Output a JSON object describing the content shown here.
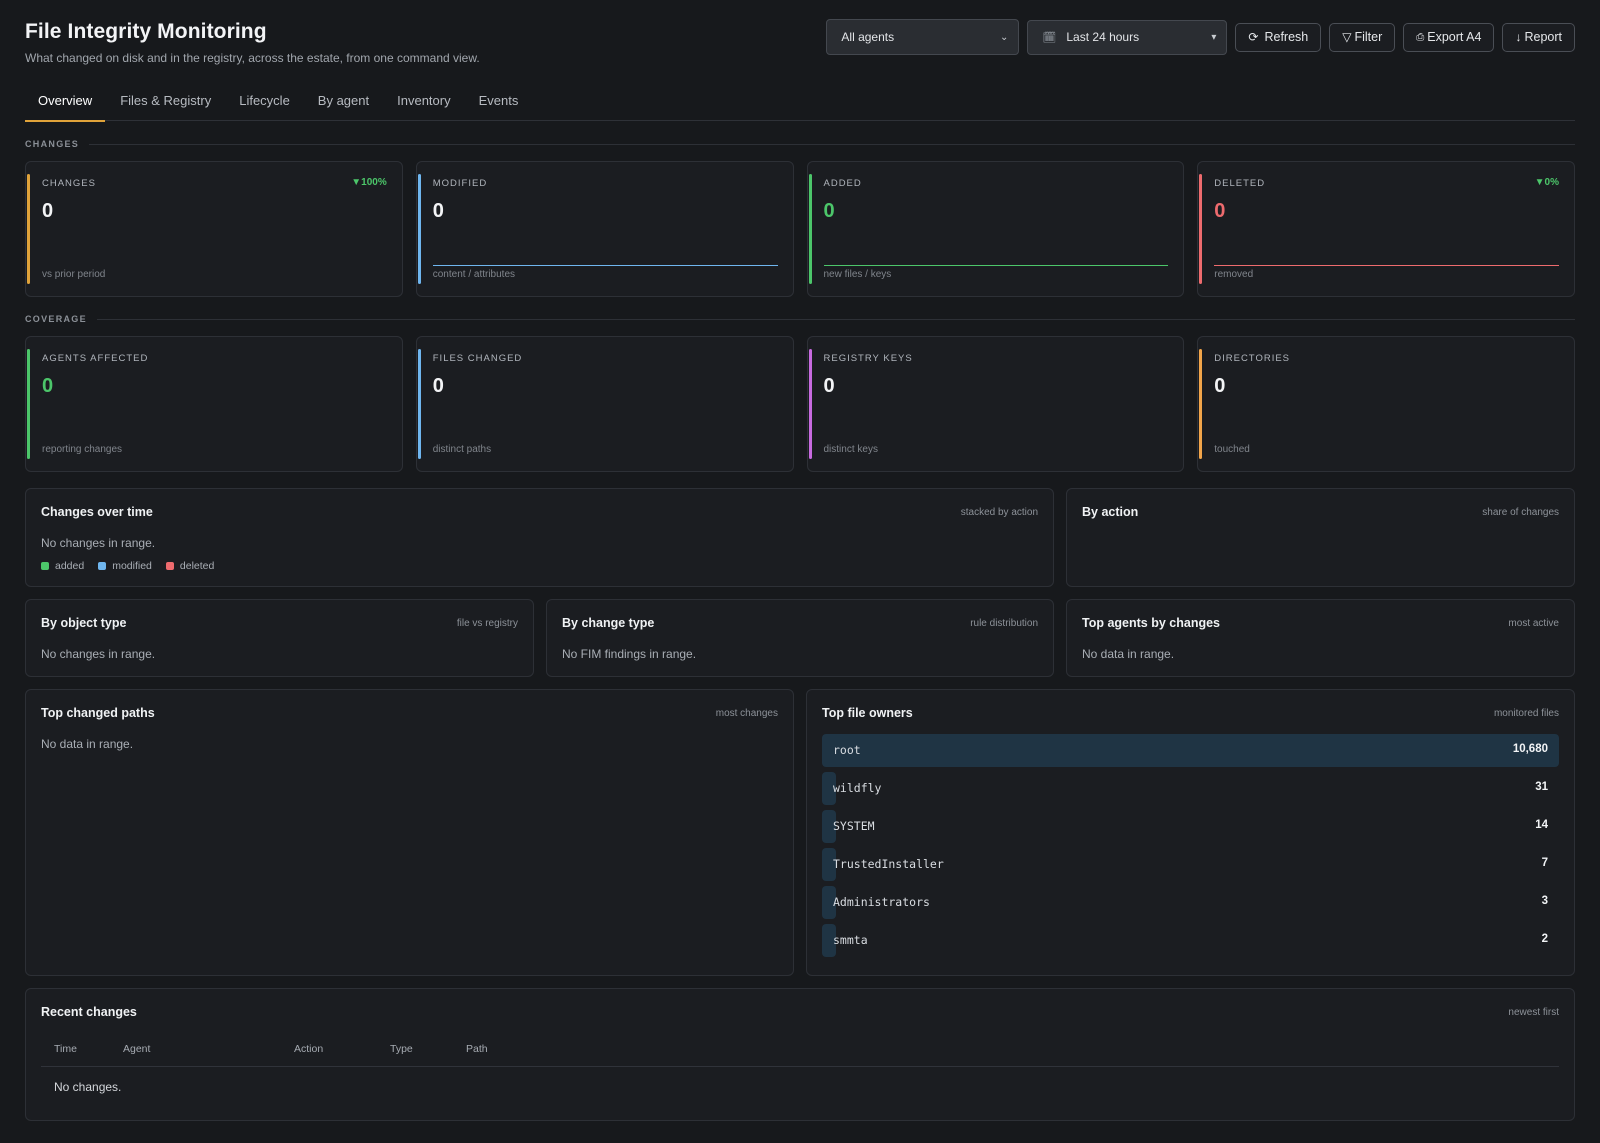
{
  "header": {
    "title": "File Integrity Monitoring",
    "subtitle": "What changed on disk and in the registry, across the estate, from one command view."
  },
  "controls": {
    "agents_select": "All agents",
    "range_select": "Last 24 hours",
    "refresh": "Refresh",
    "filter": "Filter",
    "export": "Export A4",
    "report": "Report"
  },
  "tabs": [
    "Overview",
    "Files & Registry",
    "Lifecycle",
    "By agent",
    "Inventory",
    "Events"
  ],
  "sections": {
    "changes": "CHANGES",
    "coverage": "COVERAGE"
  },
  "stats_changes": [
    {
      "label": "CHANGES",
      "value": "0",
      "foot": "vs prior period",
      "delta": "100%",
      "accent": "#e0a33a",
      "value_color": "#f3f4f6"
    },
    {
      "label": "MODIFIED",
      "value": "0",
      "foot": "content / attributes",
      "accent": "#6fb6ef",
      "value_color": "#f3f4f6",
      "spark_color": "#6fb6ef"
    },
    {
      "label": "ADDED",
      "value": "0",
      "foot": "new files / keys",
      "accent": "#4cc66a",
      "value_color": "#4cc66a",
      "spark_color": "#4cc66a"
    },
    {
      "label": "DELETED",
      "value": "0",
      "foot": "removed",
      "delta": "0%",
      "accent": "#ee6b6e",
      "value_color": "#ee6b6e",
      "spark_color": "#ee6b6e"
    }
  ],
  "stats_coverage": [
    {
      "label": "AGENTS AFFECTED",
      "value": "0",
      "foot": "reporting changes",
      "accent": "#4cc66a",
      "value_color": "#4cc66a"
    },
    {
      "label": "FILES CHANGED",
      "value": "0",
      "foot": "distinct paths",
      "accent": "#6fb6ef",
      "value_color": "#f3f4f6"
    },
    {
      "label": "REGISTRY KEYS",
      "value": "0",
      "foot": "distinct keys",
      "accent": "#c86ae0",
      "value_color": "#f3f4f6"
    },
    {
      "label": "DIRECTORIES",
      "value": "0",
      "foot": "touched",
      "accent": "#f2a54a",
      "value_color": "#f3f4f6"
    }
  ],
  "panels": {
    "changes_over_time": {
      "title": "Changes over time",
      "hint": "stacked by action",
      "empty": "No changes in range.",
      "legend": [
        {
          "label": "added",
          "color": "#4cc66a"
        },
        {
          "label": "modified",
          "color": "#6fb6ef"
        },
        {
          "label": "deleted",
          "color": "#ee6b6e"
        }
      ]
    },
    "by_action": {
      "title": "By action",
      "hint": "share of changes"
    },
    "by_object_type": {
      "title": "By object type",
      "hint": "file vs registry",
      "empty": "No changes in range."
    },
    "by_change_type": {
      "title": "By change type",
      "hint": "rule distribution",
      "empty": "No FIM findings in range."
    },
    "top_agents": {
      "title": "Top agents by changes",
      "hint": "most active",
      "empty": "No data in range."
    },
    "top_paths": {
      "title": "Top changed paths",
      "hint": "most changes",
      "empty": "No data in range."
    },
    "top_owners": {
      "title": "Top file owners",
      "hint": "monitored files",
      "owners": [
        {
          "name": "root",
          "count": "10,680",
          "value": 10680
        },
        {
          "name": "wildfly",
          "count": "31",
          "value": 31
        },
        {
          "name": "SYSTEM",
          "count": "14",
          "value": 14
        },
        {
          "name": "TrustedInstaller",
          "count": "7",
          "value": 7
        },
        {
          "name": "Administrators",
          "count": "3",
          "value": 3
        },
        {
          "name": "smmta",
          "count": "2",
          "value": 2
        }
      ]
    },
    "recent": {
      "title": "Recent changes",
      "hint": "newest first",
      "columns": [
        "Time",
        "Agent",
        "Action",
        "Type",
        "Path"
      ],
      "empty": "No changes."
    }
  }
}
